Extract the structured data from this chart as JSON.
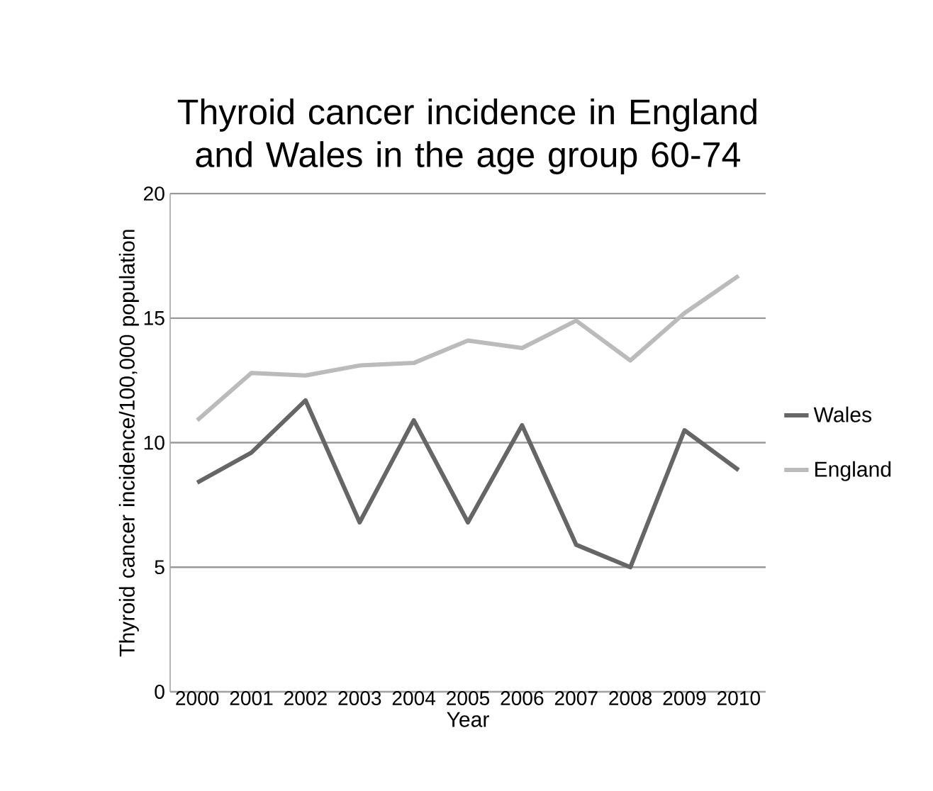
{
  "chart_data": {
    "type": "line",
    "title": "Thyroid cancer incidence in England and Wales in the age group 60-74",
    "xlabel": "Year",
    "ylabel": "Thyroid cancer incidence/100,000 population",
    "categories": [
      "2000",
      "2001",
      "2002",
      "2003",
      "2004",
      "2005",
      "2006",
      "2007",
      "2008",
      "2009",
      "2010"
    ],
    "series": [
      {
        "name": "Wales",
        "color": "#666666",
        "values": [
          8.4,
          9.6,
          11.7,
          6.8,
          10.9,
          6.8,
          10.7,
          5.9,
          5.0,
          10.5,
          8.9
        ]
      },
      {
        "name": "England",
        "color": "#bbbbbb",
        "values": [
          10.9,
          12.8,
          12.7,
          13.1,
          13.2,
          14.1,
          13.8,
          14.9,
          13.3,
          15.2,
          16.7
        ]
      }
    ],
    "ylim": [
      0,
      20
    ],
    "yticks": [
      0,
      5,
      10,
      15,
      20
    ],
    "grid": "y",
    "legend": "right",
    "marker": "none",
    "line_style": "solid"
  }
}
